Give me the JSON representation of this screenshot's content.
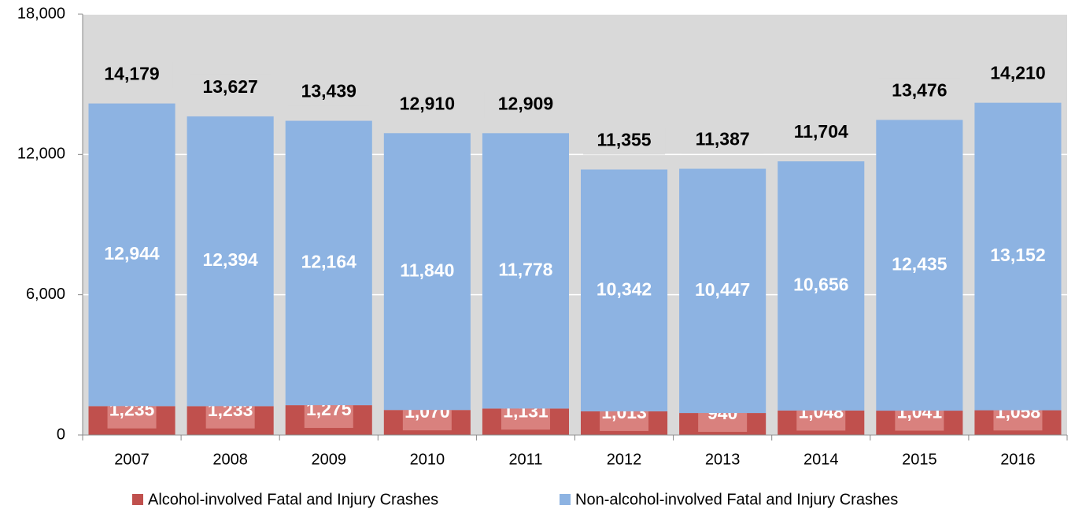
{
  "chart_data": {
    "type": "stacked_bar",
    "categories": [
      "2007",
      "2008",
      "2009",
      "2010",
      "2011",
      "2012",
      "2013",
      "2014",
      "2015",
      "2016"
    ],
    "series": [
      {
        "name": "Alcohol-involved Fatal and Injury Crashes",
        "color": "#c0504d",
        "values": [
          1235,
          1233,
          1275,
          1070,
          1131,
          1013,
          940,
          1048,
          1041,
          1058
        ],
        "value_labels": [
          "1,235",
          "1,233",
          "1,275",
          "1,070",
          "1,131",
          "1,013",
          "940",
          "1,048",
          "1,041",
          "1,058"
        ]
      },
      {
        "name": "Non-alcohol-involved Fatal and Injury Crashes",
        "color": "#8db3e2",
        "values": [
          12944,
          12394,
          12164,
          11840,
          11778,
          10342,
          10447,
          10656,
          12435,
          13152
        ],
        "value_labels": [
          "12,944",
          "12,394",
          "12,164",
          "11,840",
          "11,778",
          "10,342",
          "10,447",
          "10,656",
          "12,435",
          "13,152"
        ]
      }
    ],
    "totals": [
      14179,
      13627,
      13439,
      12910,
      12909,
      11355,
      11387,
      11704,
      13476,
      14210
    ],
    "total_labels": [
      "14,179",
      "13,627",
      "13,439",
      "12,910",
      "12,909",
      "11,355",
      "11,387",
      "11,704",
      "13,476",
      "14,210"
    ],
    "ylim": [
      0,
      18000
    ],
    "yticks": [
      0,
      {
        "value": 6000,
        "label": "6,000"
      },
      {
        "value": 12000,
        "label": "12,000"
      },
      {
        "value": 18000,
        "label": "18,000"
      }
    ],
    "grid": true,
    "legend": "bottom"
  }
}
